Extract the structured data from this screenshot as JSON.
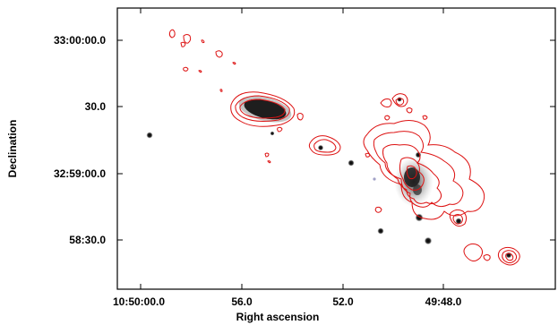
{
  "figure": {
    "xlabel": "Right ascension",
    "ylabel": "Declination",
    "x_ticks": [
      "10:50:00.0",
      "56.0",
      "52.0",
      "49:48.0"
    ],
    "y_ticks": [
      "33:00:00.0",
      "30.0",
      "32:59:00.0",
      "58:30.0"
    ],
    "contour_color": "#dd1111",
    "frame_color": "#000000"
  }
}
